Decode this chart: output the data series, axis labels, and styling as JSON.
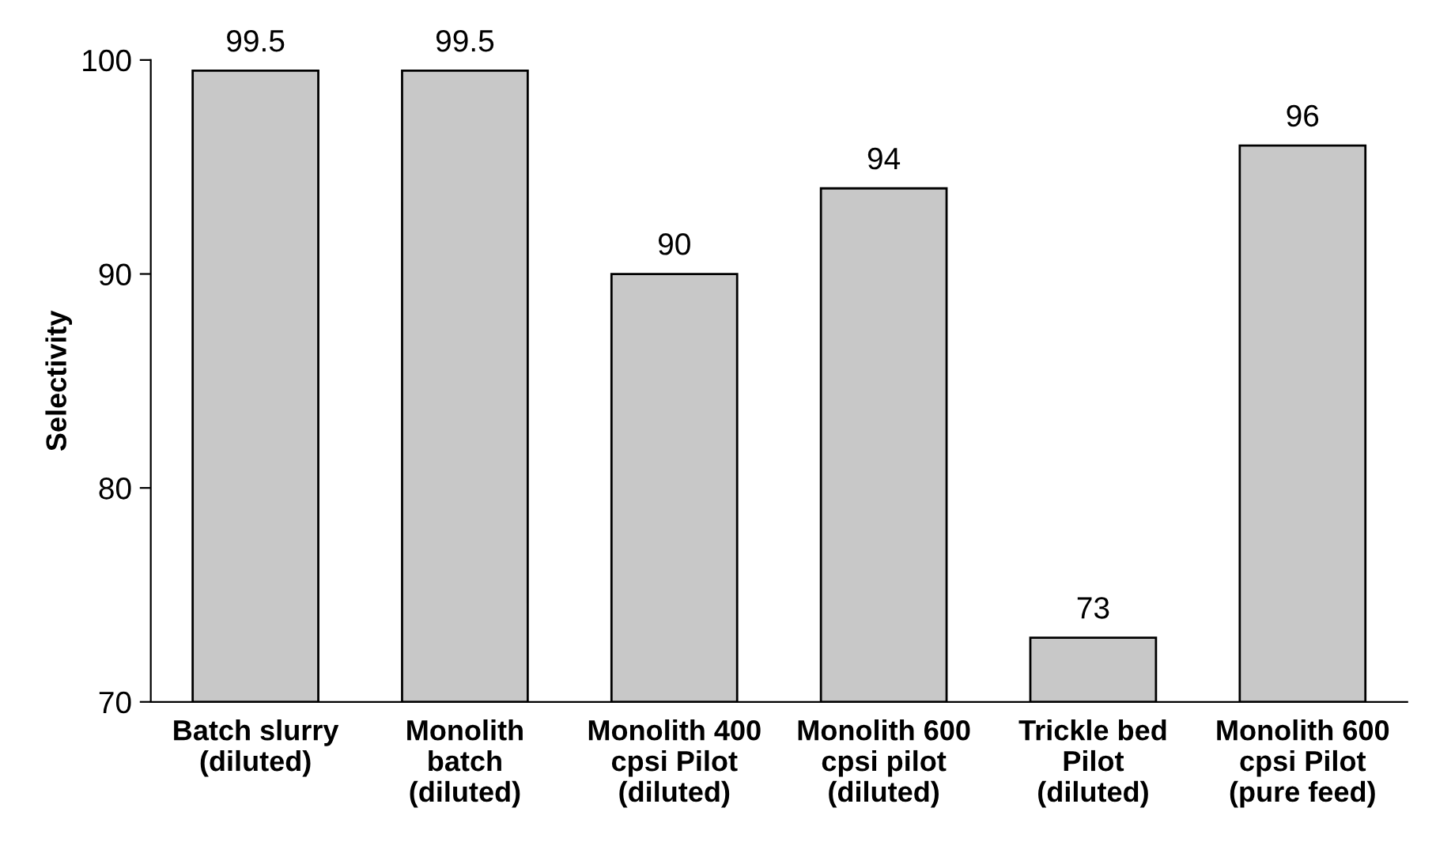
{
  "chart_data": {
    "type": "bar",
    "ylabel": "Selectivity",
    "categories": [
      "Batch slurry\n(diluted)",
      "Monolith\nbatch\n(diluted)",
      "Monolith 400\ncpsi Pilot\n(diluted)",
      "Monolith 600\ncpsi pilot\n(diluted)",
      "Trickle bed\nPilot\n(diluted)",
      "Monolith 600\ncpsi Pilot\n(pure feed)"
    ],
    "values": [
      99.5,
      99.5,
      90,
      94,
      73,
      96
    ],
    "color": "#c8c8c8",
    "ylim": [
      70,
      100
    ],
    "yticks": [
      70,
      80,
      90,
      100
    ],
    "grid": false,
    "data_labels": true
  }
}
